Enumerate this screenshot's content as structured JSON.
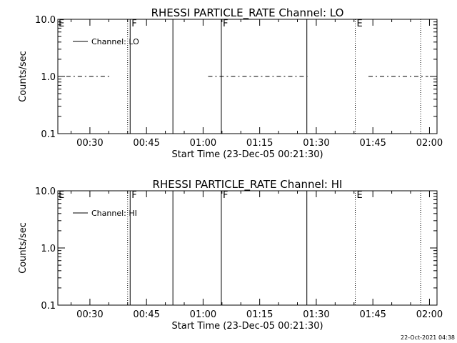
{
  "footer": {
    "timestamp": "22-Oct-2021 04:38"
  },
  "chart_data": [
    {
      "type": "scatter",
      "title": "RHESSI PARTICLE_RATE Channel: LO",
      "xlabel": "Start Time (23-Dec-05 00:21:30)",
      "ylabel": "Counts/sec",
      "y_scale": "log",
      "ylim": [
        0.1,
        10.0
      ],
      "y_ticks": [
        0.1,
        1.0,
        10.0
      ],
      "y_tick_labels": [
        "0.1",
        "1.0",
        "10.0"
      ],
      "xlim": [
        "00:21:30",
        "02:02:00"
      ],
      "x_ticks": [
        "00:30",
        "00:45",
        "01:00",
        "01:15",
        "01:30",
        "01:45",
        "02:00"
      ],
      "legend": {
        "label": "Channel: LO",
        "position": "top-left"
      },
      "series": [
        {
          "name": "Channel: LO",
          "style": "dashed",
          "y": 1.0,
          "segments": [
            [
              "00:23:45",
              "00:35:50"
            ],
            [
              "01:01:20",
              "01:27:40"
            ],
            [
              "01:43:50",
              "01:59:40"
            ]
          ]
        }
      ],
      "events": [
        {
          "time": "00:40:00",
          "style": "dotted",
          "label": ""
        },
        {
          "time": "00:40:40",
          "style": "solid",
          "label": "F"
        },
        {
          "time": "00:52:00",
          "style": "solid",
          "label": ""
        },
        {
          "time": "01:04:50",
          "style": "solid",
          "label": "F"
        },
        {
          "time": "01:27:30",
          "style": "solid",
          "label": ""
        },
        {
          "time": "01:40:20",
          "style": "dotted",
          "label": "E"
        },
        {
          "time": "01:57:40",
          "style": "dotted",
          "label": ""
        }
      ],
      "corner_label": "E"
    },
    {
      "type": "scatter",
      "title": "RHESSI PARTICLE_RATE Channel: HI",
      "xlabel": "Start Time (23-Dec-05 00:21:30)",
      "ylabel": "Counts/sec",
      "y_scale": "log",
      "ylim": [
        0.1,
        10.0
      ],
      "y_ticks": [
        0.1,
        1.0,
        10.0
      ],
      "y_tick_labels": [
        "0.1",
        "1.0",
        "10.0"
      ],
      "xlim": [
        "00:21:30",
        "02:02:00"
      ],
      "x_ticks": [
        "00:30",
        "00:45",
        "01:00",
        "01:15",
        "01:30",
        "01:45",
        "02:00"
      ],
      "legend": {
        "label": "Channel: HI",
        "position": "top-left"
      },
      "series": [
        {
          "name": "Channel: HI",
          "style": "dashed",
          "y": null,
          "segments": []
        }
      ],
      "events": [
        {
          "time": "00:40:00",
          "style": "dotted",
          "label": ""
        },
        {
          "time": "00:40:40",
          "style": "solid",
          "label": "F"
        },
        {
          "time": "00:52:00",
          "style": "solid",
          "label": ""
        },
        {
          "time": "01:04:50",
          "style": "solid",
          "label": "F"
        },
        {
          "time": "01:27:30",
          "style": "solid",
          "label": ""
        },
        {
          "time": "01:40:20",
          "style": "dotted",
          "label": "E"
        },
        {
          "time": "01:57:40",
          "style": "dotted",
          "label": ""
        }
      ],
      "corner_label": "E"
    }
  ]
}
